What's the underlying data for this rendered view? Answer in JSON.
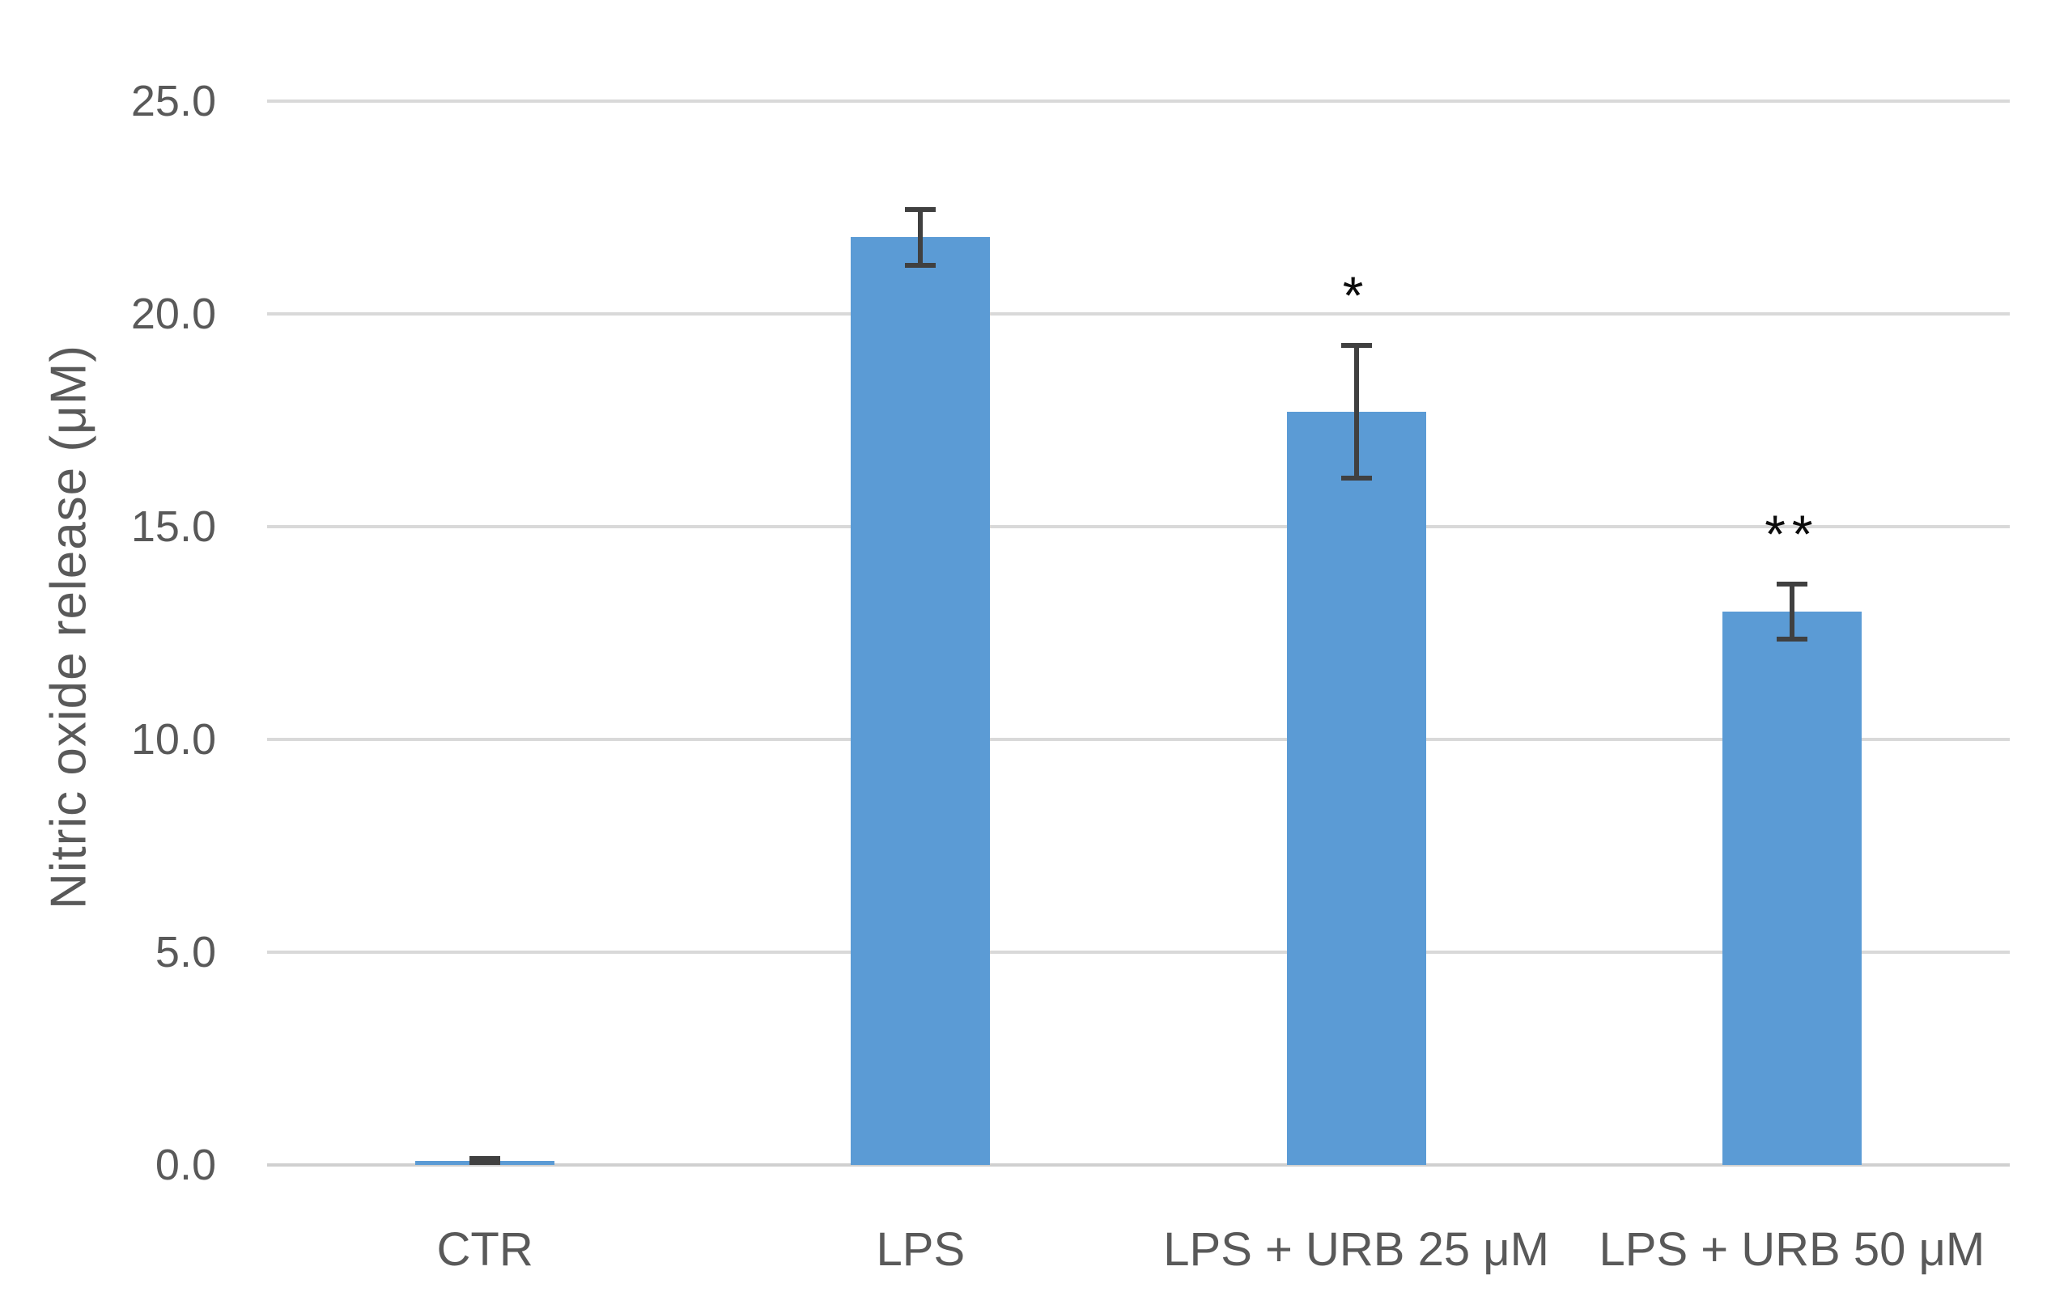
{
  "chart_data": {
    "type": "bar",
    "title": "",
    "xlabel": "",
    "ylabel": "Nitric oxide release  (μM)",
    "categories": [
      "CTR",
      "LPS",
      "LPS + URB 25 μM",
      "LPS + URB 50 μM"
    ],
    "values": [
      0.1,
      21.8,
      17.7,
      13.0
    ],
    "errors": [
      0.05,
      0.65,
      1.55,
      0.65
    ],
    "annotations": [
      "",
      "",
      "*",
      "**"
    ],
    "ylim": [
      0,
      25
    ],
    "yticks": [
      0,
      5,
      10,
      15,
      20,
      25
    ],
    "ytick_labels": [
      "0.0",
      "5.0",
      "10.0",
      "15.0",
      "20.0",
      "25.0"
    ],
    "grid": true,
    "legend": false,
    "colors": {
      "bar": "#5B9BD5",
      "gridline": "#D9D9D9",
      "axis_line": "#D0D0D0",
      "error_bar": "#404040",
      "tick_text": "#595959",
      "annotation_text": "#0d0d0d"
    }
  }
}
